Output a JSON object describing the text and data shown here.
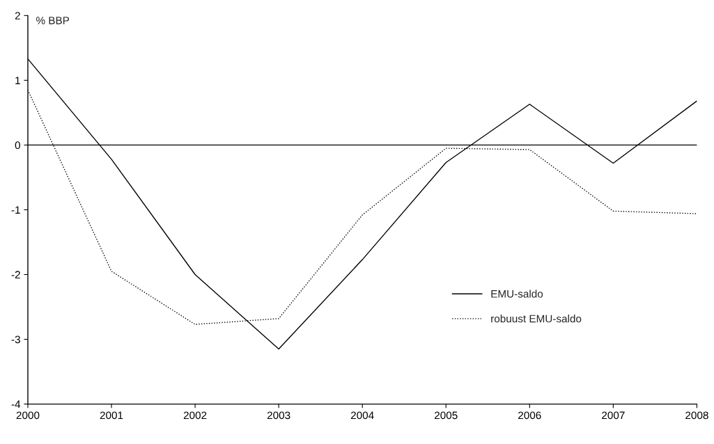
{
  "chart_data": {
    "type": "line",
    "ylabel": "% BBP",
    "x": [
      2000,
      2001,
      2002,
      2003,
      2004,
      2005,
      2006,
      2007,
      2008
    ],
    "series": [
      {
        "name": "EMU-saldo",
        "color": "#000000",
        "line_style": "solid",
        "values": [
          1.33,
          -0.22,
          -2.0,
          -3.15,
          -1.77,
          -0.27,
          0.63,
          -0.28,
          0.68
        ]
      },
      {
        "name": "robuust EMU-saldo",
        "color": "#000000",
        "line_style": "dotted",
        "values": [
          0.85,
          -1.95,
          -2.77,
          -2.68,
          -1.08,
          -0.05,
          -0.07,
          -1.02,
          -1.06
        ]
      }
    ],
    "xlim": [
      2000,
      2008
    ],
    "xticks": [
      2000,
      2001,
      2002,
      2003,
      2004,
      2005,
      2006,
      2007,
      2008
    ],
    "ylim": [
      -4,
      2
    ],
    "yticks": [
      -4,
      -3,
      -2,
      -1,
      0,
      1,
      2
    ],
    "ref_lines": [
      {
        "axis": "y",
        "value": 0,
        "color": "#000000",
        "line_style": "solid"
      }
    ],
    "grid": false,
    "legend": "bottom right",
    "marker": "none"
  }
}
